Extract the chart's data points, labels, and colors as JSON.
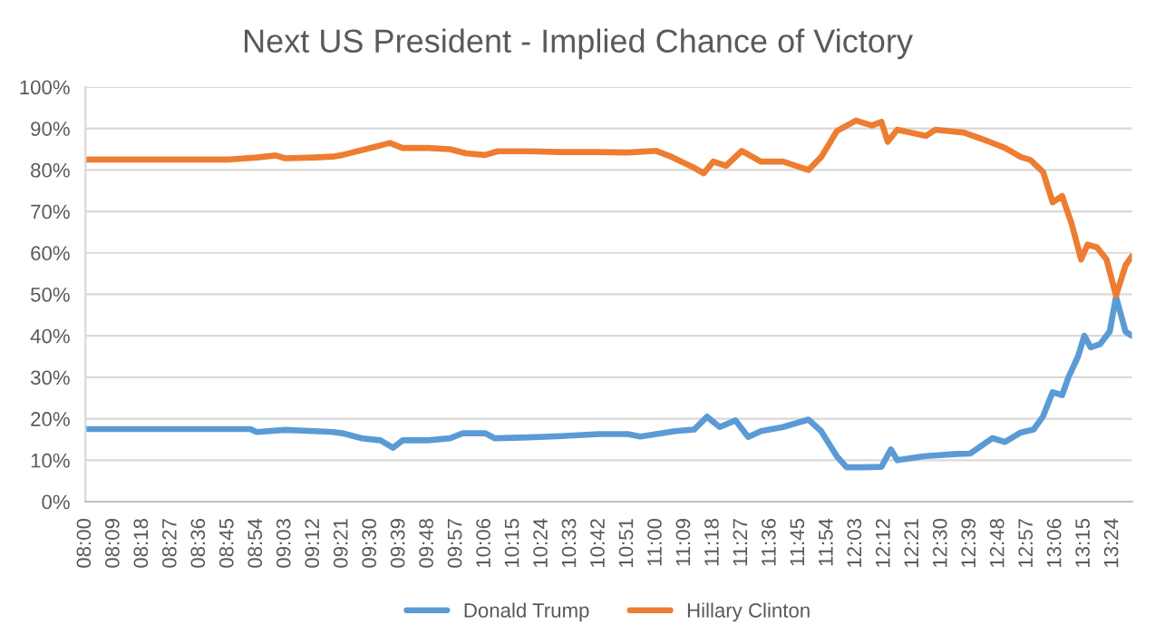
{
  "chart_data": {
    "type": "line",
    "title": "Next US President - Implied Chance of Victory",
    "series": [
      {
        "name": "Donald Trump",
        "color": "#5b9bd5",
        "x": [
          8.0,
          8.5,
          8.8667,
          8.9,
          9.05,
          9.2,
          9.3,
          9.35,
          9.45,
          9.55,
          9.6167,
          9.6667,
          9.8,
          9.9167,
          9.9833,
          10.1,
          10.15,
          10.3333,
          10.5,
          10.7,
          10.85,
          10.9167,
          11.0,
          11.1,
          11.2,
          11.2667,
          11.3333,
          11.4167,
          11.4833,
          11.55,
          11.6667,
          11.8,
          11.8667,
          11.95,
          12.0,
          12.0833,
          12.1833,
          12.2333,
          12.2667,
          12.4167,
          12.5833,
          12.65,
          12.7667,
          12.8333,
          12.9167,
          12.9833,
          13.0333,
          13.0833,
          13.1333,
          13.1667,
          13.2167,
          13.25,
          13.2833,
          13.3333,
          13.3833,
          13.4167,
          13.4667,
          13.5
        ],
        "values": [
          17.5,
          17.5,
          17.5,
          16.8,
          17.3,
          17.0,
          16.8,
          16.5,
          15.3,
          14.8,
          13.0,
          14.8,
          14.8,
          15.3,
          16.5,
          16.5,
          15.3,
          15.5,
          15.8,
          16.3,
          16.3,
          15.7,
          16.3,
          17.0,
          17.4,
          20.5,
          18.0,
          19.6,
          15.6,
          17.0,
          18.0,
          19.8,
          17.0,
          10.9,
          8.3,
          8.3,
          8.4,
          12.6,
          10.0,
          11.0,
          11.5,
          11.6,
          15.3,
          14.4,
          16.7,
          17.4,
          20.6,
          26.4,
          25.7,
          30.0,
          35.0,
          40.0,
          37.2,
          38.0,
          41.0,
          49.4,
          41.0,
          40.0
        ]
      },
      {
        "name": "Hillary Clinton",
        "color": "#ed7d31",
        "x": [
          8.0,
          8.75,
          8.9,
          9.0,
          9.05,
          9.2,
          9.3,
          9.35,
          9.5,
          9.6,
          9.6667,
          9.8,
          9.9167,
          10.0,
          10.1,
          10.1667,
          10.3333,
          10.5,
          10.7,
          10.85,
          11.0,
          11.0833,
          11.2,
          11.25,
          11.3,
          11.3667,
          11.45,
          11.55,
          11.6667,
          11.8,
          11.8667,
          11.95,
          12.05,
          12.1333,
          12.1833,
          12.2167,
          12.2667,
          12.4167,
          12.4667,
          12.6167,
          12.75,
          12.8333,
          12.9167,
          12.9667,
          13.0333,
          13.0833,
          13.1333,
          13.1833,
          13.2333,
          13.2667,
          13.3167,
          13.3667,
          13.4167,
          13.4667,
          13.5
        ],
        "values": [
          82.5,
          82.5,
          83.0,
          83.5,
          82.8,
          83.0,
          83.2,
          83.6,
          85.3,
          86.5,
          85.3,
          85.3,
          85.0,
          84.0,
          83.6,
          84.5,
          84.5,
          84.3,
          84.3,
          84.2,
          84.6,
          83.1,
          80.5,
          79.2,
          82.0,
          81.0,
          84.6,
          82.0,
          82.0,
          80.0,
          83.1,
          89.4,
          91.9,
          90.7,
          91.6,
          86.8,
          89.7,
          88.2,
          89.7,
          89.0,
          86.8,
          85.3,
          83.1,
          82.4,
          79.5,
          72.2,
          73.7,
          67.0,
          58.4,
          62.0,
          61.3,
          58.4,
          49.7,
          57.0,
          59.2
        ]
      }
    ],
    "xlim": [
      8.0,
      13.5
    ],
    "xticks": [
      {
        "value": 8.0,
        "label": "08:00"
      },
      {
        "value": 8.15,
        "label": "08:09"
      },
      {
        "value": 8.3,
        "label": "08:18"
      },
      {
        "value": 8.45,
        "label": "08:27"
      },
      {
        "value": 8.6,
        "label": "08:36"
      },
      {
        "value": 8.75,
        "label": "08:45"
      },
      {
        "value": 8.9,
        "label": "08:54"
      },
      {
        "value": 9.05,
        "label": "09:03"
      },
      {
        "value": 9.2,
        "label": "09:12"
      },
      {
        "value": 9.35,
        "label": "09:21"
      },
      {
        "value": 9.5,
        "label": "09:30"
      },
      {
        "value": 9.65,
        "label": "09:39"
      },
      {
        "value": 9.8,
        "label": "09:48"
      },
      {
        "value": 9.95,
        "label": "09:57"
      },
      {
        "value": 10.1,
        "label": "10:06"
      },
      {
        "value": 10.25,
        "label": "10:15"
      },
      {
        "value": 10.4,
        "label": "10:24"
      },
      {
        "value": 10.55,
        "label": "10:33"
      },
      {
        "value": 10.7,
        "label": "10:42"
      },
      {
        "value": 10.85,
        "label": "10:51"
      },
      {
        "value": 11.0,
        "label": "11:00"
      },
      {
        "value": 11.15,
        "label": "11:09"
      },
      {
        "value": 11.3,
        "label": "11:18"
      },
      {
        "value": 11.45,
        "label": "11:27"
      },
      {
        "value": 11.6,
        "label": "11:36"
      },
      {
        "value": 11.75,
        "label": "11:45"
      },
      {
        "value": 11.9,
        "label": "11:54"
      },
      {
        "value": 12.05,
        "label": "12:03"
      },
      {
        "value": 12.2,
        "label": "12:12"
      },
      {
        "value": 12.35,
        "label": "12:21"
      },
      {
        "value": 12.5,
        "label": "12:30"
      },
      {
        "value": 12.65,
        "label": "12:39"
      },
      {
        "value": 12.8,
        "label": "12:48"
      },
      {
        "value": 12.95,
        "label": "12:57"
      },
      {
        "value": 13.1,
        "label": "13:06"
      },
      {
        "value": 13.25,
        "label": "13:15"
      },
      {
        "value": 13.4,
        "label": "13:24"
      }
    ],
    "ylim": [
      0,
      100
    ],
    "yticks": [
      {
        "value": 0,
        "label": "0%"
      },
      {
        "value": 10,
        "label": "10%"
      },
      {
        "value": 20,
        "label": "20%"
      },
      {
        "value": 30,
        "label": "30%"
      },
      {
        "value": 40,
        "label": "40%"
      },
      {
        "value": 50,
        "label": "50%"
      },
      {
        "value": 60,
        "label": "60%"
      },
      {
        "value": 70,
        "label": "70%"
      },
      {
        "value": 80,
        "label": "80%"
      },
      {
        "value": 90,
        "label": "90%"
      },
      {
        "value": 100,
        "label": "100%"
      }
    ],
    "grid": "y",
    "legend": "bottom",
    "marker": "none",
    "line_style": "solid"
  }
}
